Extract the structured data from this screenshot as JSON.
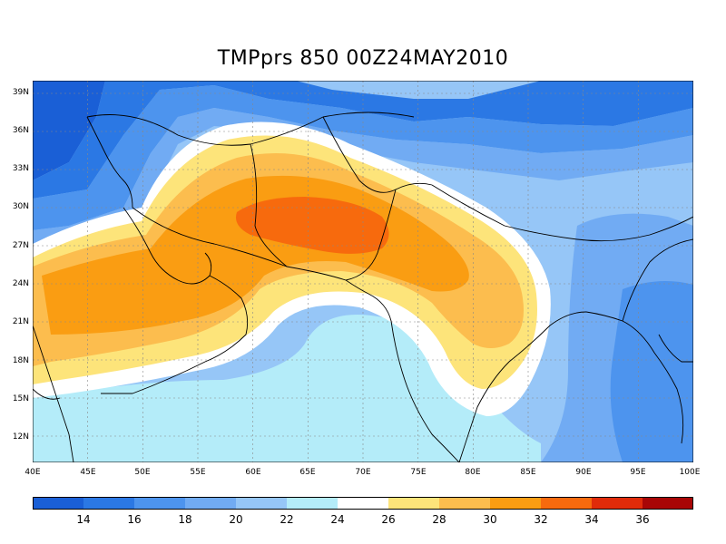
{
  "title": "TMPprs 850 00Z24MAY2010",
  "map": {
    "lat_labels": [
      "39N",
      "36N",
      "33N",
      "30N",
      "27N",
      "24N",
      "21N",
      "18N",
      "15N",
      "12N"
    ],
    "lon_labels": [
      "40E",
      "45E",
      "50E",
      "55E",
      "60E",
      "65E",
      "70E",
      "75E",
      "80E",
      "85E",
      "90E",
      "95E",
      "100E"
    ],
    "lon_range": [
      40,
      100
    ],
    "lat_range": [
      10,
      40
    ],
    "field": "temperature at 850 hPa",
    "hot_core": {
      "lon": 66,
      "lat": 28.5,
      "value_range": "32-34"
    }
  },
  "colorbar": {
    "colors": [
      "#1a5fd6",
      "#2b78e4",
      "#4d94ee",
      "#71abf3",
      "#96c6f7",
      "#b4ecf9",
      "#ffffff",
      "#fde47a",
      "#fcbd4e",
      "#fa9d12",
      "#f76a0d",
      "#e02b0a",
      "#a80606"
    ],
    "labels": [
      "14",
      "16",
      "18",
      "20",
      "22",
      "24",
      "26",
      "28",
      "30",
      "32",
      "34",
      "36"
    ]
  }
}
